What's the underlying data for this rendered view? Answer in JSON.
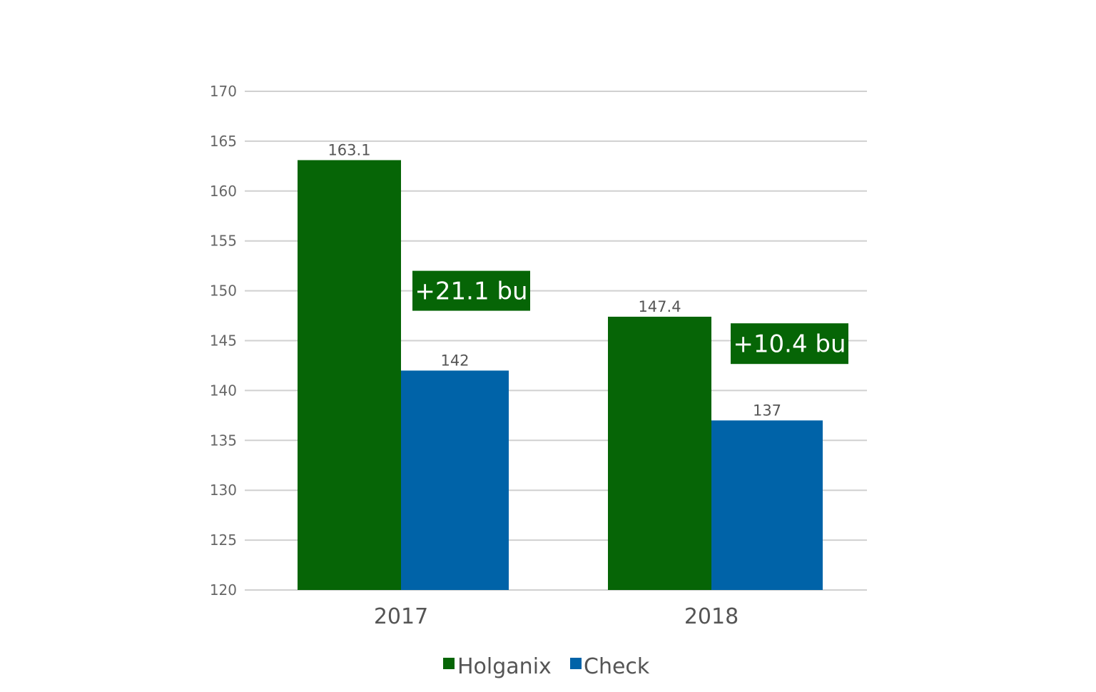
{
  "chart_data": {
    "type": "bar",
    "title": "",
    "xlabel": "",
    "ylabel": "",
    "categories": [
      "2017",
      "2018"
    ],
    "series": [
      {
        "name": "Holganix",
        "values": [
          163.1,
          147.4
        ],
        "labels": [
          "163.1",
          "147.4"
        ],
        "color": "#066506"
      },
      {
        "name": "Check",
        "values": [
          142,
          137
        ],
        "labels": [
          "142",
          "137"
        ],
        "color": "#0063a8"
      }
    ],
    "ylim": [
      120,
      170
    ],
    "yticks": [
      "120",
      "125",
      "130",
      "135",
      "140",
      "145",
      "150",
      "155",
      "160",
      "165",
      "170"
    ],
    "grid": true,
    "gridline_color": "#d0d0d0",
    "legend_position": "bottom",
    "annotations": [
      {
        "text": "+21.1 bu",
        "category": "2017",
        "y": 150,
        "color": "#066506"
      },
      {
        "text": "+10.4 bu",
        "category": "2018",
        "y": 144.7,
        "color": "#066506"
      }
    ]
  }
}
